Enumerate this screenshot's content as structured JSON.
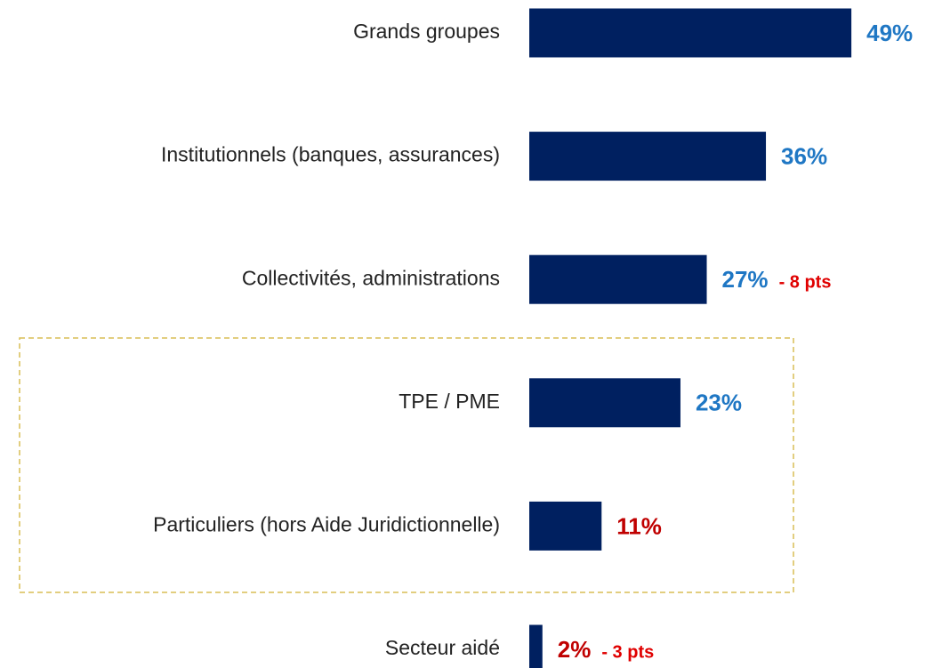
{
  "chart_data": {
    "type": "bar",
    "orientation": "horizontal",
    "categories": [
      "Grands groupes",
      "Institutionnels (banques, assurances)",
      "Collectivités, administrations",
      "TPE / PME",
      "Particuliers (hors Aide Juridictionnelle)",
      "Secteur aidé"
    ],
    "values": [
      49,
      36,
      27,
      23,
      11,
      2
    ],
    "value_labels": [
      "49%",
      "36%",
      "27%",
      "23%",
      "11%",
      "2%"
    ],
    "value_label_colors": [
      "#1f77c4",
      "#1f77c4",
      "#1f77c4",
      "#1f77c4",
      "#c00000",
      "#c00000"
    ],
    "notes": [
      null,
      null,
      "- 8 pts",
      null,
      null,
      "- 3 pts"
    ],
    "note_color": "#e00000",
    "color": "#002060"
  }
}
